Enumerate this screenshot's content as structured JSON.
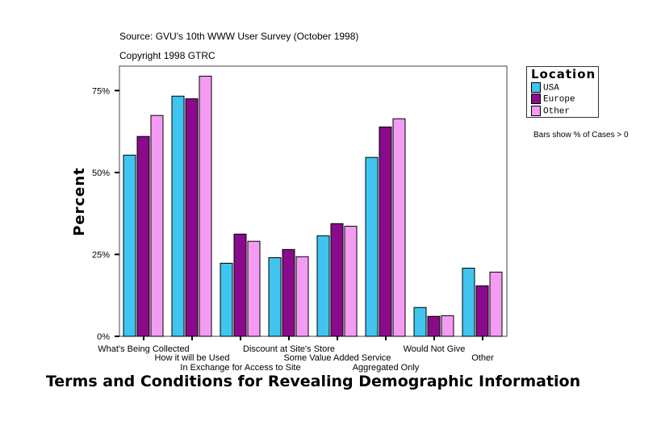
{
  "source": "Source: GVU's 10th WWW User Survey (October 1998)",
  "copyright": "Copyright 1998 GTRC",
  "note": "Bars show % of Cases > 0",
  "chart_data": {
    "type": "bar",
    "title": "Terms and Conditions for Revealing Demographic Information",
    "xlabel": "",
    "ylabel": "Percent",
    "ylim": [
      0,
      82
    ],
    "yticks": [
      0,
      25,
      50,
      75
    ],
    "ytick_labels": [
      "0%",
      "25%",
      "50%",
      "75%"
    ],
    "grid": false,
    "legend": {
      "title": "Location",
      "placement": "right"
    },
    "categories": [
      "What's Being Collected",
      "How it will be Used",
      "In Exchange for Access to Site",
      "Discount at Site's Store",
      "Some Value Added Service",
      "Aggregated Only",
      "Would Not Give",
      "Other"
    ],
    "series": [
      {
        "name": "USA",
        "color": "#40C4F0",
        "values": [
          55.3,
          73.3,
          22.3,
          24.0,
          30.7,
          54.6,
          8.8,
          20.8
        ]
      },
      {
        "name": "Europe",
        "color": "#8B0A8B",
        "values": [
          61.0,
          72.5,
          31.2,
          26.5,
          34.4,
          63.9,
          6.1,
          15.4
        ]
      },
      {
        "name": "Other",
        "color": "#F49CF4",
        "values": [
          67.4,
          79.4,
          29.0,
          24.3,
          33.6,
          66.4,
          6.3,
          19.6
        ]
      }
    ]
  }
}
